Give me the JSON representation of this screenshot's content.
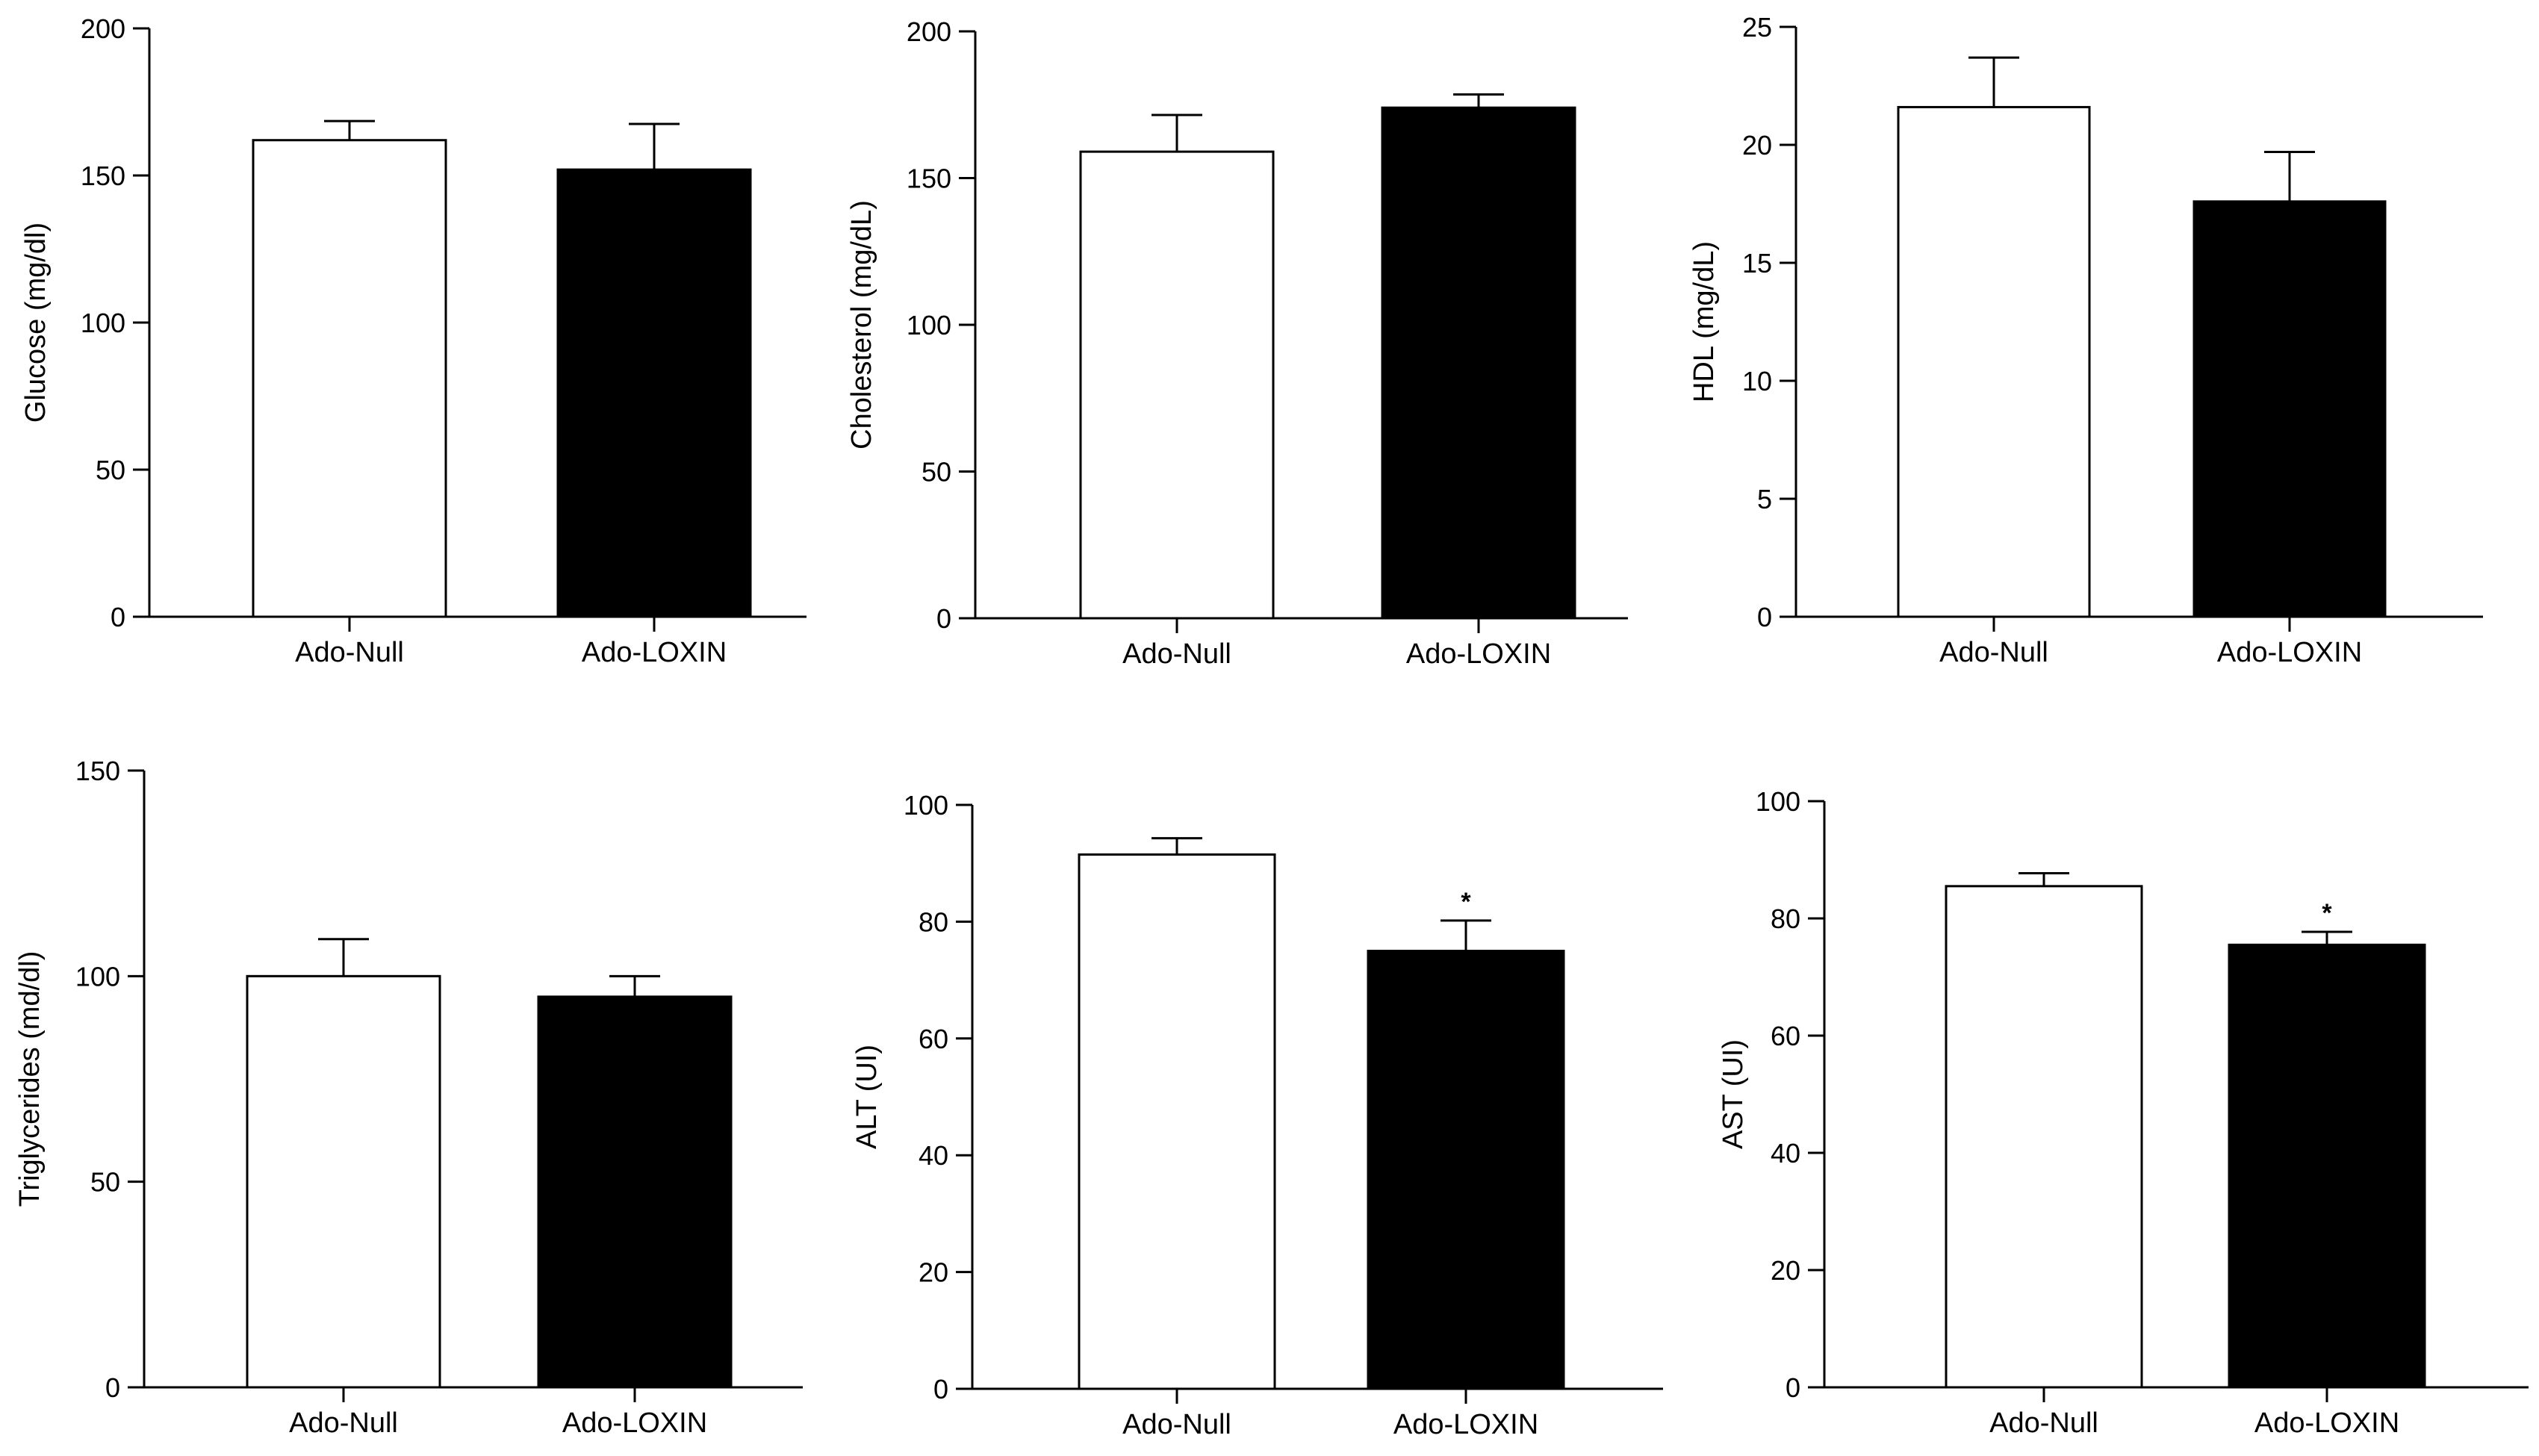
{
  "chart_data": [
    {
      "type": "bar",
      "categories": [
        "Ado-Null",
        "Ado-LOXIN"
      ],
      "values": [
        162,
        152
      ],
      "errors": [
        6.5,
        15.5
      ],
      "annotations": [
        "",
        ""
      ],
      "bar_colors": [
        "#ffffff",
        "#000000"
      ],
      "ylabel": "Glucose (mg/dl)",
      "ylim": [
        0,
        200
      ],
      "yticks": [
        0,
        50,
        100,
        150,
        200
      ],
      "title": "",
      "xlabel": ""
    },
    {
      "type": "bar",
      "categories": [
        "Ado-Null",
        "Ado-LOXIN"
      ],
      "values": [
        159,
        174
      ],
      "errors": [
        12.5,
        4.5
      ],
      "annotations": [
        "",
        ""
      ],
      "bar_colors": [
        "#ffffff",
        "#000000"
      ],
      "ylabel": "Cholesterol  (mg/dL)",
      "ylim": [
        0,
        200
      ],
      "yticks": [
        0,
        50,
        100,
        150,
        200
      ],
      "title": "",
      "xlabel": ""
    },
    {
      "type": "bar",
      "categories": [
        "Ado-Null",
        "Ado-LOXIN"
      ],
      "values": [
        21.6,
        17.6
      ],
      "errors": [
        2.1,
        2.1
      ],
      "annotations": [
        "",
        ""
      ],
      "bar_colors": [
        "#ffffff",
        "#000000"
      ],
      "ylabel": "HDL (mg/dL)",
      "ylim": [
        0,
        25
      ],
      "yticks": [
        0,
        5,
        10,
        15,
        20,
        25
      ],
      "title": "",
      "xlabel": ""
    },
    {
      "type": "bar",
      "categories": [
        "Ado-Null",
        "Ado-LOXIN"
      ],
      "values": [
        100,
        95
      ],
      "errors": [
        9,
        5
      ],
      "annotations": [
        "",
        ""
      ],
      "bar_colors": [
        "#ffffff",
        "#000000"
      ],
      "ylabel": "Triglycerides (md/dl)",
      "ylim": [
        0,
        150
      ],
      "yticks": [
        0,
        50,
        100,
        150
      ],
      "title": "",
      "xlabel": ""
    },
    {
      "type": "bar",
      "categories": [
        "Ado-Null",
        "Ado-LOXIN"
      ],
      "values": [
        91.5,
        75
      ],
      "errors": [
        2.8,
        5.2
      ],
      "annotations": [
        "",
        "*"
      ],
      "bar_colors": [
        "#ffffff",
        "#000000"
      ],
      "ylabel": "ALT (UI)",
      "ylim": [
        0,
        100
      ],
      "yticks": [
        0,
        20,
        40,
        60,
        80,
        100
      ],
      "title": "",
      "xlabel": ""
    },
    {
      "type": "bar",
      "categories": [
        "Ado-Null",
        "Ado-LOXIN"
      ],
      "values": [
        85.5,
        75.5
      ],
      "errors": [
        2.2,
        2.2
      ],
      "annotations": [
        "",
        "*"
      ],
      "bar_colors": [
        "#ffffff",
        "#000000"
      ],
      "ylabel": "AST (UI)",
      "ylim": [
        0,
        100
      ],
      "yticks": [
        0,
        20,
        40,
        60,
        80,
        100
      ],
      "title": "",
      "xlabel": ""
    }
  ]
}
